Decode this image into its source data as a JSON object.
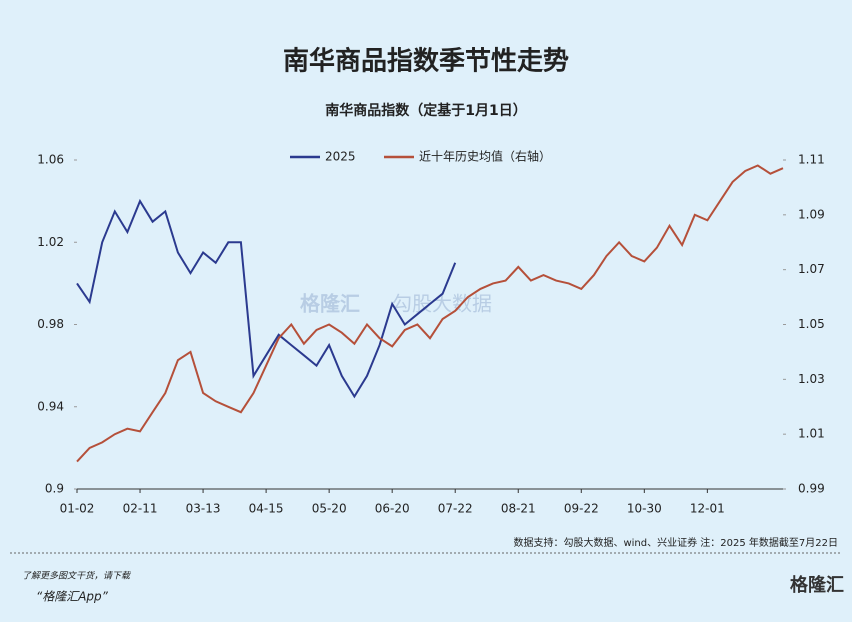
{
  "chart_data": {
    "type": "line",
    "title": "南华商品指数季节性走势",
    "subtitle": "南华商品指数（定基于1月1日）",
    "categories": [
      "01-02",
      null,
      null,
      null,
      null,
      "02-11",
      null,
      null,
      null,
      null,
      "03-13",
      null,
      null,
      null,
      null,
      "04-15",
      null,
      null,
      null,
      null,
      "05-20",
      null,
      null,
      null,
      null,
      "06-20",
      null,
      null,
      null,
      null,
      "07-22",
      null,
      null,
      null,
      null,
      "08-21",
      null,
      null,
      null,
      null,
      "09-22",
      null,
      null,
      null,
      null,
      "10-30",
      null,
      null,
      null,
      null,
      "12-01",
      null,
      null,
      null,
      null,
      null,
      null
    ],
    "series": [
      {
        "name": "2025",
        "color": "#2b3a8f",
        "axis": "y",
        "values": [
          1.0,
          0.991,
          1.02,
          1.035,
          1.025,
          1.04,
          1.03,
          1.035,
          1.015,
          1.005,
          1.015,
          1.01,
          1.02,
          1.02,
          0.955,
          0.965,
          0.975,
          0.97,
          0.965,
          0.96,
          0.97,
          0.955,
          0.945,
          0.955,
          0.97,
          0.99,
          0.98,
          0.985,
          0.99,
          0.995,
          1.01,
          null,
          null,
          null,
          null,
          null,
          null,
          null,
          null,
          null,
          null,
          null,
          null,
          null,
          null,
          null,
          null,
          null,
          null,
          null,
          null,
          null,
          null,
          null,
          null,
          null,
          null
        ]
      },
      {
        "name": "近十年历史均值（右轴）",
        "color": "#b5503a",
        "axis": "y2",
        "values": [
          1.0,
          1.005,
          1.007,
          1.01,
          1.012,
          1.011,
          1.018,
          1.025,
          1.037,
          1.04,
          1.025,
          1.022,
          1.02,
          1.018,
          1.025,
          1.035,
          1.045,
          1.05,
          1.043,
          1.048,
          1.05,
          1.047,
          1.043,
          1.05,
          1.045,
          1.042,
          1.048,
          1.05,
          1.045,
          1.052,
          1.055,
          1.06,
          1.063,
          1.065,
          1.066,
          1.071,
          1.066,
          1.068,
          1.066,
          1.065,
          1.063,
          1.068,
          1.075,
          1.08,
          1.075,
          1.073,
          1.078,
          1.086,
          1.079,
          1.09,
          1.088,
          1.095,
          1.102,
          1.106,
          1.108,
          1.105,
          1.107
        ]
      }
    ],
    "ylim": [
      0.9,
      1.06
    ],
    "yticks": [
      0.9,
      0.94,
      0.98,
      1.02,
      1.06
    ],
    "y2lim": [
      0.99,
      1.11
    ],
    "y2ticks": [
      0.99,
      1.01,
      1.03,
      1.05,
      1.07,
      1.09,
      1.11
    ],
    "legend": "top",
    "grid": false
  },
  "watermark": [
    "格隆汇",
    "勾股大数据"
  ],
  "source": "数据支持：勾股大数据、wind、兴业证券 注：2025 年数据截至7月22日",
  "footer": {
    "prompt": "了解更多图文干货，请下载",
    "app": "“格隆汇App”",
    "logo": "格隆汇"
  }
}
